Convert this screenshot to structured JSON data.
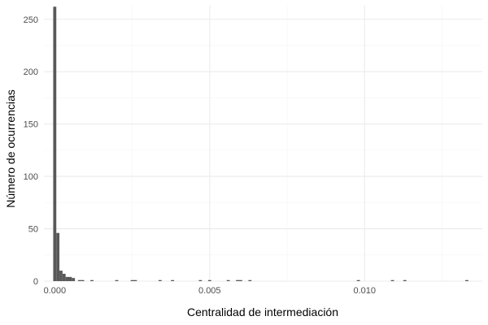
{
  "chart_data": {
    "type": "bar",
    "subtype": "histogram",
    "title": "",
    "xlabel": "Centralidad de intermediación",
    "ylabel": "Número de ocurrencias",
    "xlim": [
      -0.00035,
      0.0138
    ],
    "ylim": [
      0,
      263
    ],
    "x_ticks": [
      0.0,
      0.005,
      0.01
    ],
    "x_tick_labels": [
      "0.000",
      "0.005",
      "0.010"
    ],
    "y_ticks": [
      0,
      50,
      100,
      150,
      200,
      250
    ],
    "y_tick_labels": [
      "0",
      "50",
      "100",
      "150",
      "200",
      "250"
    ],
    "grid": true,
    "theme": "minimal",
    "bar_color": "#595959",
    "bin_width": 0.0001,
    "bins": [
      {
        "x": 0.0,
        "count": 262
      },
      {
        "x": 0.0001,
        "count": 46
      },
      {
        "x": 0.0002,
        "count": 10
      },
      {
        "x": 0.0003,
        "count": 7
      },
      {
        "x": 0.0004,
        "count": 4
      },
      {
        "x": 0.0005,
        "count": 4
      },
      {
        "x": 0.0006,
        "count": 3
      },
      {
        "x": 0.0008,
        "count": 1
      },
      {
        "x": 0.0009,
        "count": 1
      },
      {
        "x": 0.0012,
        "count": 1
      },
      {
        "x": 0.002,
        "count": 1
      },
      {
        "x": 0.0025,
        "count": 1
      },
      {
        "x": 0.0026,
        "count": 1
      },
      {
        "x": 0.0034,
        "count": 1
      },
      {
        "x": 0.0038,
        "count": 1
      },
      {
        "x": 0.0047,
        "count": 1
      },
      {
        "x": 0.005,
        "count": 1
      },
      {
        "x": 0.0056,
        "count": 1
      },
      {
        "x": 0.0059,
        "count": 1
      },
      {
        "x": 0.006,
        "count": 1
      },
      {
        "x": 0.0063,
        "count": 1
      },
      {
        "x": 0.0098,
        "count": 1
      },
      {
        "x": 0.0109,
        "count": 1
      },
      {
        "x": 0.0113,
        "count": 1
      },
      {
        "x": 0.0133,
        "count": 1
      }
    ]
  }
}
